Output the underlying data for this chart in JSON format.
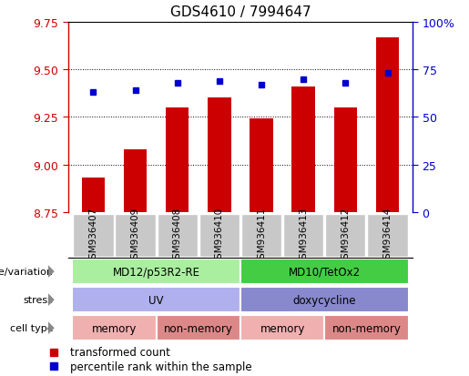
{
  "title": "GDS4610 / 7994647",
  "samples": [
    "GSM936407",
    "GSM936409",
    "GSM936408",
    "GSM936410",
    "GSM936411",
    "GSM936413",
    "GSM936412",
    "GSM936414"
  ],
  "bar_values": [
    8.93,
    9.08,
    9.3,
    9.35,
    9.24,
    9.41,
    9.3,
    9.67
  ],
  "bar_bottom": 8.75,
  "percentile_values": [
    63,
    64,
    68,
    69,
    67,
    70,
    68,
    73
  ],
  "ylim": [
    8.75,
    9.75
  ],
  "ylim_right": [
    0,
    100
  ],
  "yticks_left": [
    8.75,
    9.0,
    9.25,
    9.5,
    9.75
  ],
  "yticks_right": [
    0,
    25,
    50,
    75,
    100
  ],
  "bar_color": "#cc0000",
  "point_color": "#0000cc",
  "title_fontsize": 11,
  "annotation_rows": [
    {
      "label": "genotype/variation",
      "groups": [
        {
          "text": "MD12/p53R2-RE",
          "span": [
            0,
            3
          ],
          "color": "#aaeea0"
        },
        {
          "text": "MD10/TetOx2",
          "span": [
            4,
            7
          ],
          "color": "#44cc44"
        }
      ]
    },
    {
      "label": "stress",
      "groups": [
        {
          "text": "UV",
          "span": [
            0,
            3
          ],
          "color": "#b0b0ee"
        },
        {
          "text": "doxycycline",
          "span": [
            4,
            7
          ],
          "color": "#8888cc"
        }
      ]
    },
    {
      "label": "cell type",
      "groups": [
        {
          "text": "memory",
          "span": [
            0,
            1
          ],
          "color": "#f0b0b0"
        },
        {
          "text": "non-memory",
          "span": [
            2,
            3
          ],
          "color": "#dd8888"
        },
        {
          "text": "memory",
          "span": [
            4,
            5
          ],
          "color": "#f0b0b0"
        },
        {
          "text": "non-memory",
          "span": [
            6,
            7
          ],
          "color": "#dd8888"
        }
      ]
    }
  ],
  "legend_items": [
    {
      "label": "transformed count",
      "color": "#cc0000"
    },
    {
      "label": "percentile rank within the sample",
      "color": "#0000cc"
    }
  ],
  "tick_label_bg": "#c8c8c8",
  "left_axis_color": "#cc0000",
  "right_axis_color": "#0000cc",
  "border_color": "#000000",
  "label_arrow_color": "#888888"
}
